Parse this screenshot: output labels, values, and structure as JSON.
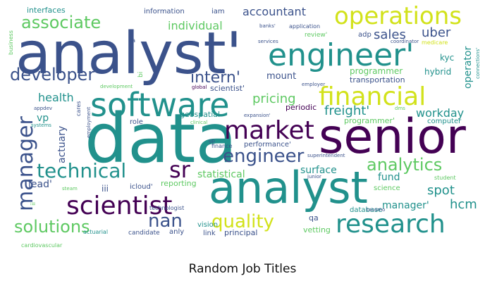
{
  "caption": "Random Job Titles",
  "palette": [
    "#440154",
    "#3b528b",
    "#21918c",
    "#5ec962",
    "#fde725"
  ],
  "words": [
    {
      "text": "analyst'",
      "color": "#3b528b"
    },
    {
      "text": "data",
      "color": "#21918c"
    },
    {
      "text": "senior",
      "color": "#440154"
    },
    {
      "text": "analyst",
      "color": "#21918c"
    },
    {
      "text": "engineer'",
      "color": "#21918c"
    },
    {
      "text": "software",
      "color": "#21918c"
    },
    {
      "text": "operations",
      "color": "#d2e21b"
    },
    {
      "text": "financial",
      "color": "#d2e21b"
    },
    {
      "text": "market",
      "color": "#440154"
    },
    {
      "text": "scientist",
      "color": "#440154"
    },
    {
      "text": "manager",
      "color": "#3b528b"
    },
    {
      "text": "research",
      "color": "#21918c"
    },
    {
      "text": "technical",
      "color": "#21918c"
    },
    {
      "text": "sr",
      "color": "#440154"
    },
    {
      "text": "developer'",
      "color": "#3b528b"
    },
    {
      "text": "associate",
      "color": "#5ec962"
    },
    {
      "text": "engineer",
      "color": "#3b528b"
    },
    {
      "text": "intern'",
      "color": "#3b528b"
    },
    {
      "text": "analytics",
      "color": "#5ec962"
    },
    {
      "text": "quality",
      "color": "#d2e21b"
    },
    {
      "text": "solutions",
      "color": "#5ec962"
    },
    {
      "text": "nan",
      "color": "#3b528b"
    },
    {
      "text": "pricing",
      "color": "#5ec962"
    },
    {
      "text": "freight'",
      "color": "#21918c"
    },
    {
      "text": "accountant",
      "color": "#3b528b"
    },
    {
      "text": "individual",
      "color": "#5ec962"
    },
    {
      "text": "sales",
      "color": "#3b528b"
    },
    {
      "text": "uber",
      "color": "#3b528b"
    },
    {
      "text": "health",
      "color": "#21918c"
    },
    {
      "text": "workday",
      "color": "#21918c"
    },
    {
      "text": "spot",
      "color": "#21918c"
    },
    {
      "text": "hcm",
      "color": "#21918c"
    },
    {
      "text": "manager'",
      "color": "#21918c"
    },
    {
      "text": "fund",
      "color": "#21918c"
    },
    {
      "text": "surface",
      "color": "#21918c"
    },
    {
      "text": "statistical",
      "color": "#5ec962"
    },
    {
      "text": "lead'",
      "color": "#3b528b"
    },
    {
      "text": "actuary",
      "color": "#3b528b"
    },
    {
      "text": "vp",
      "color": "#21918c"
    },
    {
      "text": "mount",
      "color": "#3b528b"
    },
    {
      "text": "programmer",
      "color": "#5ec962"
    },
    {
      "text": "operator",
      "color": "#21918c"
    },
    {
      "text": "interfaces",
      "color": "#21918c"
    },
    {
      "text": "information",
      "color": "#3b528b"
    },
    {
      "text": "iam",
      "color": "#3b528b"
    },
    {
      "text": "hybrid",
      "color": "#21918c"
    },
    {
      "text": "kyc",
      "color": "#21918c"
    },
    {
      "text": "transportation",
      "color": "#3b528b"
    },
    {
      "text": "scientist'",
      "color": "#3b528b"
    },
    {
      "text": "periodic",
      "color": "#440154"
    },
    {
      "text": "geospatial",
      "color": "#21918c"
    },
    {
      "text": "role",
      "color": "#3b528b"
    },
    {
      "text": "programmer'",
      "color": "#5ec962"
    },
    {
      "text": "computer",
      "color": "#21918c"
    },
    {
      "text": "performance'",
      "color": "#3b528b"
    },
    {
      "text": "iii",
      "color": "#3b528b"
    },
    {
      "text": "icloud'",
      "color": "#3b528b"
    },
    {
      "text": "reporting",
      "color": "#5ec962"
    },
    {
      "text": "science",
      "color": "#5ec962"
    },
    {
      "text": "database",
      "color": "#21918c"
    },
    {
      "text": "principal",
      "color": "#3b528b"
    },
    {
      "text": "vetting",
      "color": "#5ec962"
    },
    {
      "text": "qa",
      "color": "#3b528b"
    },
    {
      "text": "vision",
      "color": "#21918c"
    },
    {
      "text": "link",
      "color": "#3b528b"
    },
    {
      "text": "anly",
      "color": "#3b528b"
    },
    {
      "text": "candidate",
      "color": "#3b528b"
    },
    {
      "text": "actuarial",
      "color": "#21918c"
    },
    {
      "text": "cardiovascular",
      "color": "#5ec962"
    },
    {
      "text": "technologist",
      "color": "#3b528b"
    },
    {
      "text": "finance",
      "color": "#3b528b"
    },
    {
      "text": "superintendent",
      "color": "#3b528b"
    },
    {
      "text": "student",
      "color": "#5ec962"
    },
    {
      "text": "junior",
      "color": "#3b528b"
    },
    {
      "text": "business",
      "color": "#5ec962"
    },
    {
      "text": "banks'",
      "color": "#3b528b"
    },
    {
      "text": "application",
      "color": "#3b528b"
    },
    {
      "text": "review'",
      "color": "#5ec962"
    },
    {
      "text": "adp",
      "color": "#3b528b"
    },
    {
      "text": "coordinator",
      "color": "#3b528b"
    },
    {
      "text": "medicare",
      "color": "#d2e21b"
    },
    {
      "text": "connections'",
      "color": "#21918c"
    },
    {
      "text": "services",
      "color": "#3b528b"
    },
    {
      "text": "ba",
      "color": "#3b528b"
    },
    {
      "text": "bi",
      "color": "#5ec962"
    },
    {
      "text": "global",
      "color": "#440154"
    },
    {
      "text": "employer",
      "color": "#3b528b"
    },
    {
      "text": "development",
      "color": "#5ec962"
    },
    {
      "text": "appdev",
      "color": "#3b528b"
    },
    {
      "text": "cares",
      "color": "#3b528b"
    },
    {
      "text": "employment",
      "color": "#3b528b"
    },
    {
      "text": "systems",
      "color": "#21918c"
    },
    {
      "text": "clinical",
      "color": "#5ec962"
    },
    {
      "text": "expansion'",
      "color": "#3b528b"
    },
    {
      "text": "dms",
      "color": "#5ec962"
    },
    {
      "text": "gp",
      "color": "#3b528b"
    },
    {
      "text": "steam",
      "color": "#5ec962"
    },
    {
      "text": "ii",
      "color": "#5ec962"
    },
    {
      "text": "tacomo",
      "color": "#3b528b"
    }
  ]
}
